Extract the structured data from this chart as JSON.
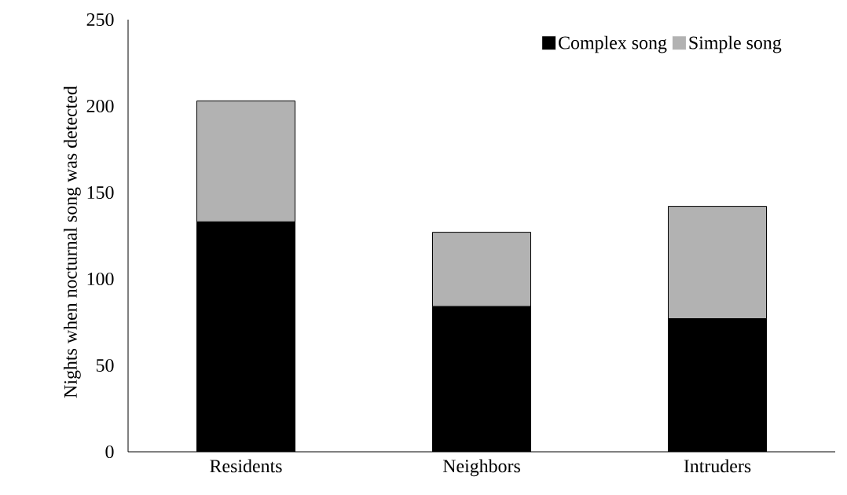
{
  "chart_data": {
    "type": "bar",
    "stacked": true,
    "ylabel": "Nights when nocturnal song was detected",
    "categories": [
      "Residents",
      "Neighbors",
      "Intruders"
    ],
    "series": [
      {
        "name": "Complex song",
        "color": "#000000",
        "values": [
          133,
          84,
          77
        ]
      },
      {
        "name": "Simple song",
        "color": "#b2b2b2",
        "values": [
          70,
          43,
          65
        ]
      }
    ],
    "ylim": [
      0,
      250
    ],
    "yticks": [
      0,
      50,
      100,
      150,
      200,
      250
    ],
    "legend": "top right"
  }
}
